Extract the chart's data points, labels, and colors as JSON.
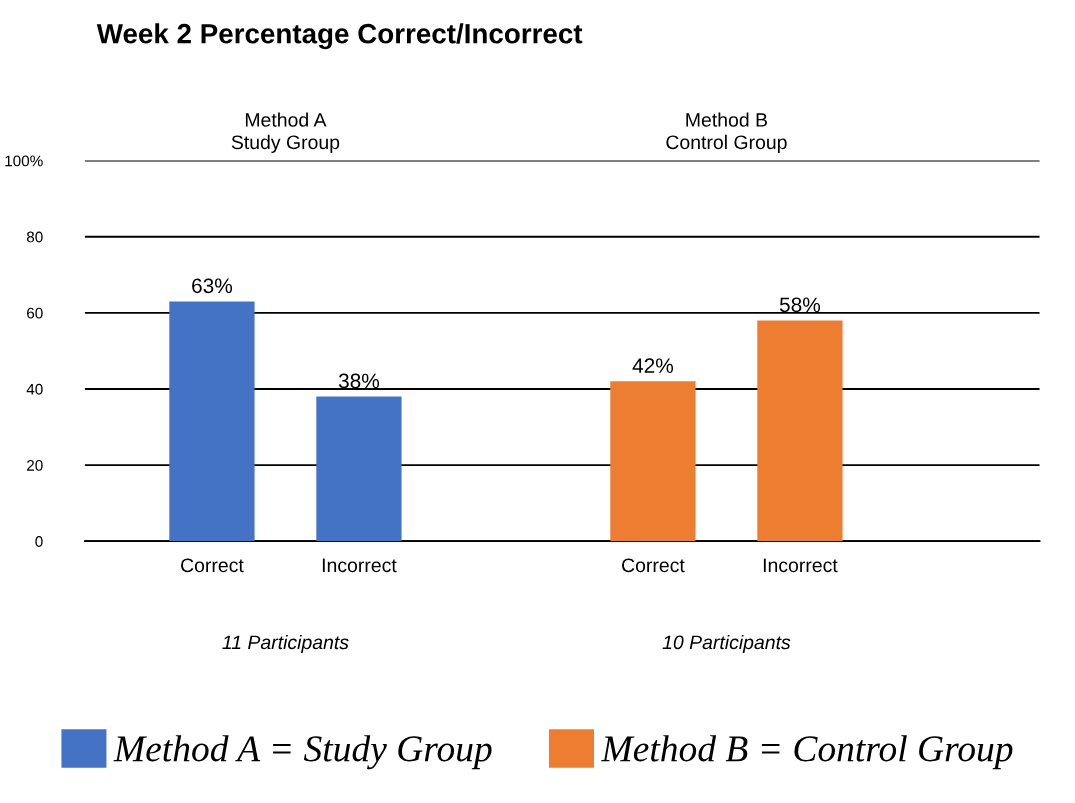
{
  "chart_data": {
    "type": "bar",
    "title": "Week 2 Percentage Correct/Incorrect",
    "categories": [
      "Correct",
      "Incorrect",
      null,
      "Correct",
      "Incorrect"
    ],
    "series": [
      {
        "name": "Method A = Study Group",
        "color": "#4472c4",
        "values": [
          63,
          38,
          null,
          null,
          null
        ],
        "value_labels": [
          "63%",
          "38%",
          null,
          null,
          null
        ]
      },
      {
        "name": "Method B = Control Group",
        "color": "#ed7d31",
        "values": [
          null,
          null,
          null,
          42,
          58
        ],
        "value_labels": [
          null,
          null,
          null,
          "42%",
          "58%"
        ]
      }
    ],
    "ylim": [
      0,
      100
    ],
    "yticks": [
      0,
      20,
      40,
      60,
      80,
      {
        "value": 100,
        "label": "100%"
      }
    ],
    "grid": "y",
    "legend": "bottom",
    "annotations": [
      "Method A\nStudy Group",
      "Method B\nControl Group",
      "11 Participants",
      "10 Participants"
    ]
  }
}
